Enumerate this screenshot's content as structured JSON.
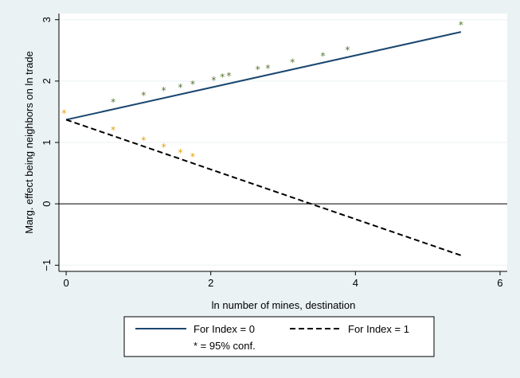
{
  "chart_data": {
    "type": "line",
    "xlabel": "ln number of mines, destination",
    "ylabel": "Marg. effect being neighbors on ln trade",
    "xlim": [
      -0.1,
      6.1
    ],
    "ylim": [
      -1.1,
      3.1
    ],
    "xticks": [
      0,
      2,
      4,
      6
    ],
    "yticks": [
      -1,
      0,
      1,
      2,
      3
    ],
    "ytick_labels": [
      "−1",
      "0",
      "1",
      "2",
      "3"
    ],
    "reference_line_y": 0,
    "grid": "horizontal",
    "legend_position": "bottom",
    "series": [
      {
        "name": "For Index = 0",
        "style": "solid",
        "color": "#1a476f",
        "x": [
          0,
          5.46
        ],
        "y": [
          1.37,
          2.8
        ],
        "significant_points": {
          "x": [
            -0.03,
            0.65,
            1.07,
            1.35,
            1.58,
            1.75,
            2.04,
            2.16,
            2.25,
            2.65,
            2.79,
            3.13,
            3.55,
            3.89,
            5.46
          ],
          "y": [
            1.5,
            1.68,
            1.79,
            1.87,
            1.92,
            1.97,
            2.04,
            2.09,
            2.11,
            2.21,
            2.23,
            2.33,
            2.43,
            2.53,
            2.94
          ],
          "marker_colors": [
            "#e69f00",
            "#55752f",
            "#55752f",
            "#55752f",
            "#55752f",
            "#55752f",
            "#55752f",
            "#55752f",
            "#55752f",
            "#55752f",
            "#55752f",
            "#55752f",
            "#55752f",
            "#55752f",
            "#55752f"
          ]
        }
      },
      {
        "name": "For Index = 1",
        "style": "dashed",
        "color": "#000000",
        "x": [
          0,
          5.46
        ],
        "y": [
          1.37,
          -0.84
        ],
        "significant_points": {
          "x": [
            0.65,
            1.07,
            1.35,
            1.58,
            1.75
          ],
          "y": [
            1.23,
            1.06,
            0.95,
            0.86,
            0.79
          ],
          "marker_colors": [
            "#e69f00",
            "#e69f00",
            "#e69f00",
            "#e69f00",
            "#e69f00"
          ]
        }
      }
    ],
    "legend": {
      "entries": [
        "For Index = 0",
        "For Index = 1"
      ],
      "note": "* = 95% conf."
    }
  },
  "marker_symbol": "*",
  "colors": {
    "background": "#eaf2f3",
    "plot_area": "#ffffff",
    "grid": "#eaf2f3"
  }
}
